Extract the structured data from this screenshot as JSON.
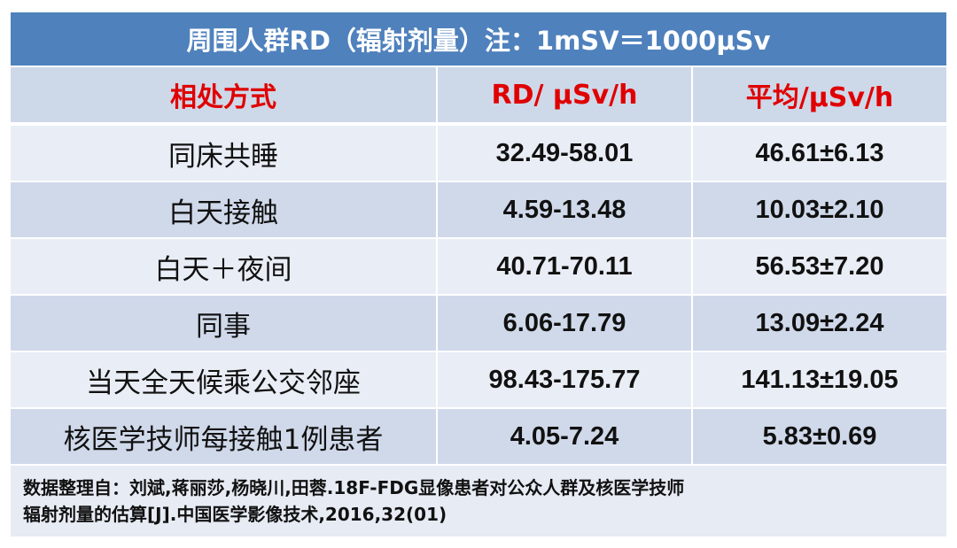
{
  "title": "周围人群RD（辐射剂量）注：1mSV＝1000μSv",
  "table": {
    "headers": [
      "相处方式",
      "RD/ μSv/h",
      "平均/μSv/h"
    ],
    "rows": [
      [
        "同床共睡",
        "32.49-58.01",
        "46.61±6.13"
      ],
      [
        "白天接触",
        "4.59-13.48",
        "10.03±2.10"
      ],
      [
        "白天＋夜间",
        "40.71-70.11",
        "56.53±7.20"
      ],
      [
        "同事",
        "6.06-17.79",
        "13.09±2.24"
      ],
      [
        "当天全天候乘公交邻座",
        "98.43-175.77",
        "141.13±19.05"
      ],
      [
        "核医学技师每接触1例患者",
        "4.05-7.24",
        "5.83±0.69"
      ]
    ]
  },
  "footer": {
    "lines": [
      "数据整理自：刘斌,蒋丽莎,杨晓川,田蓉.18F-FDG显像患者对公众人群及核医学技师",
      "辐射剂量的估算[J].中国医学影像技术,2016,32(01)"
    ]
  }
}
